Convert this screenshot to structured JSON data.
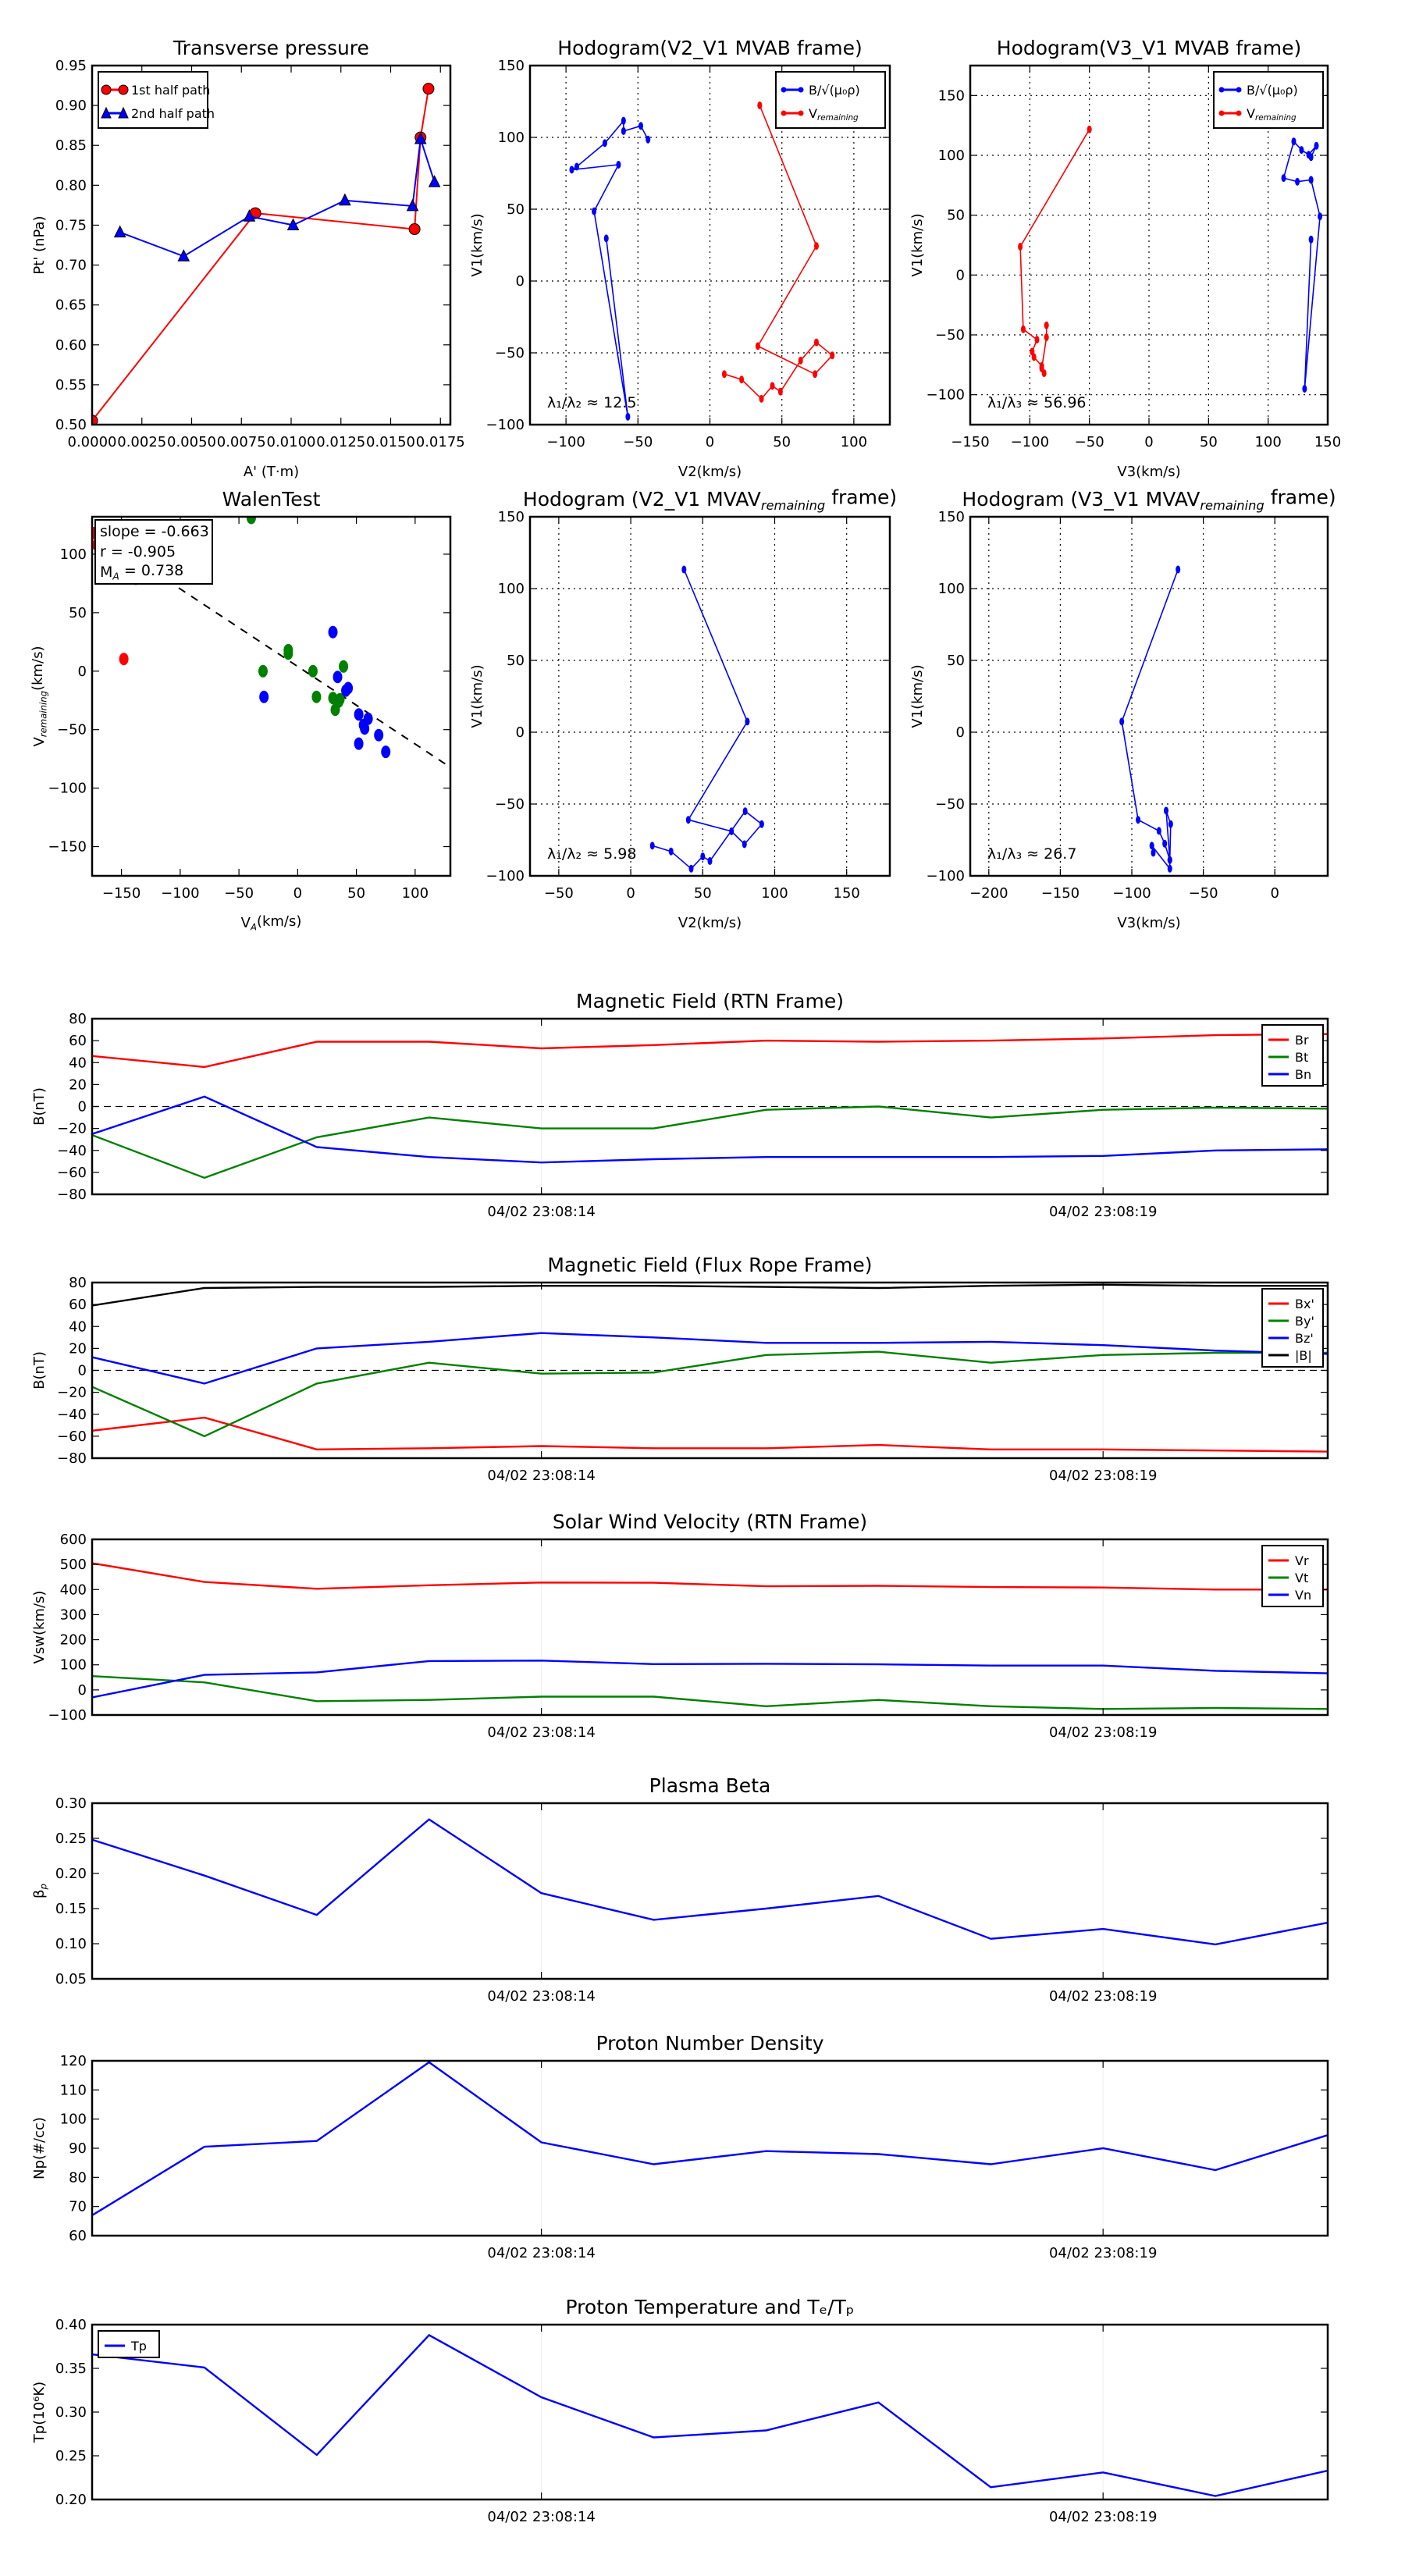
{
  "chart_data": [
    {
      "type": "line",
      "title": {
        "text": "Transverse pressure"
      },
      "xlabel": {
        "text": "A' (T·m)"
      },
      "ylabel": {
        "text": "Pt' (nPa)"
      },
      "xlim": [
        0,
        0.018
      ],
      "ylim": [
        0.5,
        0.95
      ],
      "xticks": [
        0,
        0.0025,
        0.005,
        0.0075,
        0.01,
        0.0125,
        0.015,
        0.0175
      ],
      "xticklabels": [
        "0.0000",
        "0.0025",
        "0.0050",
        "0.0075",
        "0.0100",
        "0.0125",
        "0.0150",
        "0.0175"
      ],
      "yticks": [
        0.5,
        0.55,
        0.6,
        0.65,
        0.7,
        0.75,
        0.8,
        0.85,
        0.9,
        0.95
      ],
      "yticklabels": [
        "0.50",
        "0.55",
        "0.60",
        "0.65",
        "0.70",
        "0.75",
        "0.80",
        "0.85",
        "0.90",
        "0.95"
      ],
      "grid": false,
      "legend": "top-left",
      "series": [
        {
          "name": {
            "text": "1st half path"
          },
          "color": "#ff0000",
          "marker": "circle",
          "x": [
            0.0,
            0.0082,
            0.0162,
            0.0165,
            0.0169
          ],
          "y": [
            0.505,
            0.765,
            0.745,
            0.86,
            0.921
          ]
        },
        {
          "name": {
            "text": "2nd half path"
          },
          "color": "#0000ff",
          "marker": "triangle",
          "x": [
            0.0172,
            0.0165,
            0.0161,
            0.0127,
            0.0101,
            0.0079,
            0.0046,
            0.0014
          ],
          "y": [
            0.804,
            0.858,
            0.774,
            0.781,
            0.75,
            0.761,
            0.711,
            0.741
          ]
        }
      ]
    },
    {
      "type": "line",
      "title": {
        "text": "Hodogram(V2_V1 MVAB frame)"
      },
      "xlabel": {
        "text": "V2(km/s)"
      },
      "ylabel": {
        "text": "V1(km/s)"
      },
      "xlim": [
        -125,
        125
      ],
      "ylim": [
        -100,
        150
      ],
      "xticks": [
        -100,
        -50,
        0,
        50,
        100
      ],
      "yticks": [
        -100,
        -50,
        0,
        50,
        100,
        150
      ],
      "grid": true,
      "legend": "top-right",
      "annotation": {
        "text": "λ₁/λ₂ ≈ 12.5"
      },
      "series": [
        {
          "name": {
            "text": "B/√(μ₀ρ)"
          },
          "color": "#0000ff",
          "marker": "dot",
          "x": [
            -72,
            -57,
            -80.5,
            -63.5,
            -96,
            -92.5,
            -73,
            -60,
            -60,
            -48,
            -43
          ],
          "y": [
            29.7,
            -94.5,
            48.6,
            81,
            77.5,
            79.6,
            96,
            111.6,
            104.4,
            108,
            98.5
          ]
        },
        {
          "name": {
            "text": "V",
            "sub": "remaining"
          },
          "color": "#ff0000",
          "marker": "dot",
          "x": [
            34.6,
            74,
            33.3,
            73,
            85,
            74,
            63,
            49,
            43.4,
            35.8,
            22,
            10
          ],
          "y": [
            122.3,
            24.4,
            -45.3,
            -64.8,
            -51.8,
            -42.7,
            -55.4,
            -77,
            -73,
            -82,
            -68.6,
            -64.8
          ]
        }
      ]
    },
    {
      "type": "line",
      "title": {
        "text": "Hodogram(V3_V1 MVAB frame)"
      },
      "xlabel": {
        "text": "V3(km/s)"
      },
      "ylabel": {
        "text": "V1(km/s)"
      },
      "xlim": [
        -150,
        150
      ],
      "ylim": [
        -125,
        175
      ],
      "xticks": [
        -150,
        -100,
        -50,
        0,
        50,
        100,
        150
      ],
      "yticks": [
        -100,
        -50,
        0,
        50,
        100,
        150
      ],
      "grid": true,
      "legend": "top-right",
      "annotation": {
        "text": "λ₁/λ₃ ≈ 56.96"
      },
      "series": [
        {
          "name": {
            "text": "B/√(μ₀ρ)"
          },
          "color": "#0000ff",
          "marker": "dot",
          "x": [
            136,
            130.6,
            143.5,
            136,
            124.5,
            113,
            121.5,
            128,
            134,
            140.5,
            136
          ],
          "y": [
            29.7,
            -95,
            49,
            79.5,
            78,
            81,
            111.6,
            104.5,
            100.5,
            108,
            98.5
          ]
        },
        {
          "name": {
            "text": "V",
            "sub": "remaining"
          },
          "color": "#ff0000",
          "marker": "dot",
          "x": [
            -50,
            -108,
            -105.5,
            -94,
            -98,
            -96.5,
            -90,
            -88,
            -90,
            -86,
            -86
          ],
          "y": [
            121.7,
            23.7,
            -45.3,
            -54,
            -64,
            -68.6,
            -76,
            -82,
            -78,
            -52,
            -42
          ]
        }
      ]
    },
    {
      "type": "scatter",
      "title": {
        "text": "WalenTest"
      },
      "xlabel": {
        "text": "V",
        "sub": "A",
        "after": "(km/s)"
      },
      "ylabel": {
        "text": "V",
        "sub": "remaining",
        "after": "(km/s)"
      },
      "xlim": [
        -175,
        130
      ],
      "ylim": [
        -175,
        132
      ],
      "xticks": [
        -150,
        -100,
        -50,
        0,
        50,
        100
      ],
      "yticks": [
        -150,
        -100,
        -50,
        0,
        50,
        100
      ],
      "grid": false,
      "fit": {
        "slope": -0.663,
        "intercept": 4
      },
      "stats": [
        {
          "text": "slope = -0.663"
        },
        {
          "text": "r = -0.905"
        },
        {
          "text": "M",
          "sub": "A",
          "after": " = 0.738"
        }
      ],
      "series": [
        {
          "name": {
            "text": "red"
          },
          "color": "#ff0000",
          "marker": "oval",
          "x": [
            -174,
            -171,
            -148
          ],
          "y": [
            118,
            108,
            10.4
          ]
        },
        {
          "name": {
            "text": "green"
          },
          "color": "#008000",
          "marker": "oval",
          "x": [
            -39.5,
            -138,
            -29.5,
            -8,
            -8,
            13,
            39,
            16,
            30,
            35,
            32,
            36
          ],
          "y": [
            131,
            79,
            0,
            18,
            15,
            0,
            4,
            -22,
            -23,
            -26,
            -33,
            -24
          ]
        },
        {
          "name": {
            "text": "blue"
          },
          "color": "#0000ff",
          "marker": "oval",
          "x": [
            30,
            34,
            43,
            41,
            -28.7,
            52,
            60,
            56,
            57,
            69,
            52,
            75
          ],
          "y": [
            33.4,
            -5,
            -14.5,
            -16.6,
            -22,
            -37,
            -40.7,
            -46,
            -49,
            -54.7,
            -62,
            -69
          ]
        }
      ]
    },
    {
      "type": "line",
      "title": {
        "text": "Hodogram (V2_V1 MVAV",
        "sub": "remaining",
        "after": " frame)"
      },
      "xlabel": {
        "text": "V2(km/s)"
      },
      "ylabel": {
        "text": "V1(km/s)"
      },
      "xlim": [
        -70,
        180
      ],
      "ylim": [
        -100,
        150
      ],
      "xticks": [
        -50,
        0,
        50,
        100,
        150
      ],
      "yticks": [
        -100,
        -50,
        0,
        50,
        100,
        150
      ],
      "grid": true,
      "annotation": {
        "text": "λ₁/λ₂ ≈ 5.98"
      },
      "series": [
        {
          "name": {
            "text": "V"
          },
          "color": "#0000ff",
          "marker": "dot",
          "x": [
            37,
            81,
            40,
            70,
            79,
            91,
            79.5,
            55,
            50,
            42,
            28,
            15
          ],
          "y": [
            113.3,
            7.4,
            -61,
            -69,
            -78,
            -64,
            -55,
            -89.7,
            -86.5,
            -95,
            -83,
            -79
          ]
        }
      ]
    },
    {
      "type": "line",
      "title": {
        "text": "Hodogram (V3_V1 MVAV",
        "sub": "remaining",
        "after": " frame)"
      },
      "xlabel": {
        "text": "V3(km/s)"
      },
      "ylabel": {
        "text": "V1(km/s)"
      },
      "xlim": [
        -213,
        37
      ],
      "ylim": [
        -100,
        150
      ],
      "xticks": [
        -200,
        -150,
        -100,
        -50,
        0
      ],
      "yticks": [
        -100,
        -50,
        0,
        50,
        100,
        150
      ],
      "grid": true,
      "annotation": {
        "text": "λ₁/λ₃ ≈ 26.7"
      },
      "series": [
        {
          "name": {
            "text": "V"
          },
          "color": "#0000ff",
          "marker": "dot",
          "x": [
            -67.7,
            -107,
            -95.6,
            -81,
            -77,
            -73.4,
            -72.8,
            -76,
            -73.4,
            -73.4,
            -86,
            -85
          ],
          "y": [
            113.3,
            7.4,
            -61,
            -68.7,
            -77.6,
            -89,
            -64,
            -54.6,
            -89,
            -95,
            -79,
            -84
          ]
        }
      ]
    },
    {
      "type": "line",
      "title": {
        "text": "Magnetic Field (RTN Frame)"
      },
      "ylabel": {
        "text": "B(nT)"
      },
      "xlim": [
        0,
        11
      ],
      "ylim": [
        -80,
        80
      ],
      "xticks": [
        4,
        9
      ],
      "xticklabels": [
        "04/02 23:08:14",
        "04/02 23:08:19"
      ],
      "yticks": [
        -80,
        -60,
        -40,
        -20,
        0,
        20,
        40,
        60,
        80
      ],
      "zero_line": true,
      "legend": "top-right",
      "series": [
        {
          "name": {
            "text": "Br"
          },
          "color": "#ff0000",
          "y": [
            46,
            36,
            59,
            59,
            53,
            56,
            60,
            59,
            60,
            62,
            65,
            66
          ]
        },
        {
          "name": {
            "text": "Bt"
          },
          "color": "#008000",
          "y": [
            -26,
            -65,
            -28,
            -10,
            -20,
            -20,
            -3,
            0,
            -10,
            -3,
            -1,
            -2
          ]
        },
        {
          "name": {
            "text": "Bn"
          },
          "color": "#0000ff",
          "y": [
            -25,
            9,
            -37,
            -46,
            -51,
            -48,
            -46,
            -46,
            -46,
            -45,
            -40,
            -39
          ]
        }
      ]
    },
    {
      "type": "line",
      "title": {
        "text": "Magnetic Field (Flux Rope Frame)"
      },
      "ylabel": {
        "text": "B(nT)"
      },
      "xlim": [
        0,
        11
      ],
      "ylim": [
        -80,
        80
      ],
      "xticks": [
        4,
        9
      ],
      "xticklabels": [
        "04/02 23:08:14",
        "04/02 23:08:19"
      ],
      "yticks": [
        -80,
        -60,
        -40,
        -20,
        0,
        20,
        40,
        60,
        80
      ],
      "zero_line": true,
      "legend": "top-right",
      "series": [
        {
          "name": {
            "text": "Bx'"
          },
          "color": "#ff0000",
          "y": [
            -55,
            -43,
            -72,
            -71,
            -69,
            -71,
            -71,
            -68,
            -72,
            -72,
            -73,
            -74
          ]
        },
        {
          "name": {
            "text": "By'"
          },
          "color": "#008000",
          "y": [
            -15,
            -60,
            -12,
            7,
            -3,
            -2,
            14,
            17,
            7,
            14,
            16,
            16
          ]
        },
        {
          "name": {
            "text": "Bz'"
          },
          "color": "#0000ff",
          "y": [
            12,
            -12,
            20,
            26,
            34,
            30,
            25,
            25,
            26,
            23,
            18,
            15
          ]
        },
        {
          "name": {
            "text": "|B|"
          },
          "color": "#000000",
          "y": [
            59,
            75,
            76,
            76,
            77,
            77,
            76,
            75,
            77,
            78,
            77,
            77
          ]
        }
      ]
    },
    {
      "type": "line",
      "title": {
        "text": "Solar Wind Velocity (RTN Frame)"
      },
      "ylabel": {
        "text": "Vsw(km/s)"
      },
      "xlim": [
        0,
        11
      ],
      "ylim": [
        -100,
        600
      ],
      "xticks": [
        4,
        9
      ],
      "xticklabels": [
        "04/02 23:08:14",
        "04/02 23:08:19"
      ],
      "yticks": [
        -100,
        0,
        100,
        200,
        300,
        400,
        500,
        600
      ],
      "legend": "top-right",
      "series": [
        {
          "name": {
            "text": "Vr"
          },
          "color": "#ff0000",
          "y": [
            505,
            430,
            403,
            417,
            428,
            427,
            413,
            415,
            410,
            408,
            400,
            400
          ]
        },
        {
          "name": {
            "text": "Vt"
          },
          "color": "#008000",
          "y": [
            55,
            30,
            -45,
            -40,
            -27,
            -27,
            -65,
            -40,
            -65,
            -76,
            -72,
            -76
          ]
        },
        {
          "name": {
            "text": "Vn"
          },
          "color": "#0000ff",
          "y": [
            -30,
            60,
            70,
            115,
            117,
            103,
            104,
            102,
            97,
            97,
            76,
            66
          ]
        }
      ]
    },
    {
      "type": "line",
      "title": {
        "text": "Plasma Beta"
      },
      "ylabel": {
        "text": "β",
        "sub": "p"
      },
      "xlim": [
        0,
        11
      ],
      "ylim": [
        0.05,
        0.3
      ],
      "xticks": [
        4,
        9
      ],
      "xticklabels": [
        "04/02 23:08:14",
        "04/02 23:08:19"
      ],
      "yticks": [
        0.05,
        0.1,
        0.15,
        0.2,
        0.25,
        0.3
      ],
      "yticklabels": [
        "0.05",
        "0.10",
        "0.15",
        "0.20",
        "0.25",
        "0.30"
      ],
      "series": [
        {
          "name": {
            "text": "beta"
          },
          "color": "#0000ff",
          "y": [
            0.248,
            0.197,
            0.141,
            0.277,
            0.172,
            0.134,
            0.15,
            0.168,
            0.107,
            0.121,
            0.099,
            0.13
          ]
        }
      ]
    },
    {
      "type": "line",
      "title": {
        "text": "Proton Number Density"
      },
      "ylabel": {
        "text": "Np(#/cc)"
      },
      "xlim": [
        0,
        11
      ],
      "ylim": [
        60,
        120
      ],
      "xticks": [
        4,
        9
      ],
      "xticklabels": [
        "04/02 23:08:14",
        "04/02 23:08:19"
      ],
      "yticks": [
        60,
        70,
        80,
        90,
        100,
        110,
        120
      ],
      "series": [
        {
          "name": {
            "text": "Np"
          },
          "color": "#0000ff",
          "y": [
            67,
            90.5,
            92.5,
            119.5,
            92,
            84.5,
            89,
            88,
            84.5,
            90,
            82.5,
            94.5
          ]
        }
      ]
    },
    {
      "type": "line",
      "title": {
        "text": "Proton Temperature and Tₑ/Tₚ"
      },
      "ylabel": {
        "text": "Tp(10⁶K)"
      },
      "xlim": [
        0,
        11
      ],
      "ylim": [
        0.2,
        0.4
      ],
      "xticks": [
        4,
        9
      ],
      "xticklabels": [
        "04/02 23:08:14",
        "04/02 23:08:19"
      ],
      "yticks": [
        0.2,
        0.25,
        0.3,
        0.35,
        0.4
      ],
      "yticklabels": [
        "0.20",
        "0.25",
        "0.30",
        "0.35",
        "0.40"
      ],
      "legend": "top-left",
      "series": [
        {
          "name": {
            "text": "Tp"
          },
          "color": "#0000ff",
          "y": [
            0.366,
            0.351,
            0.251,
            0.388,
            0.317,
            0.271,
            0.279,
            0.311,
            0.214,
            0.231,
            0.204,
            0.233
          ]
        }
      ]
    }
  ]
}
